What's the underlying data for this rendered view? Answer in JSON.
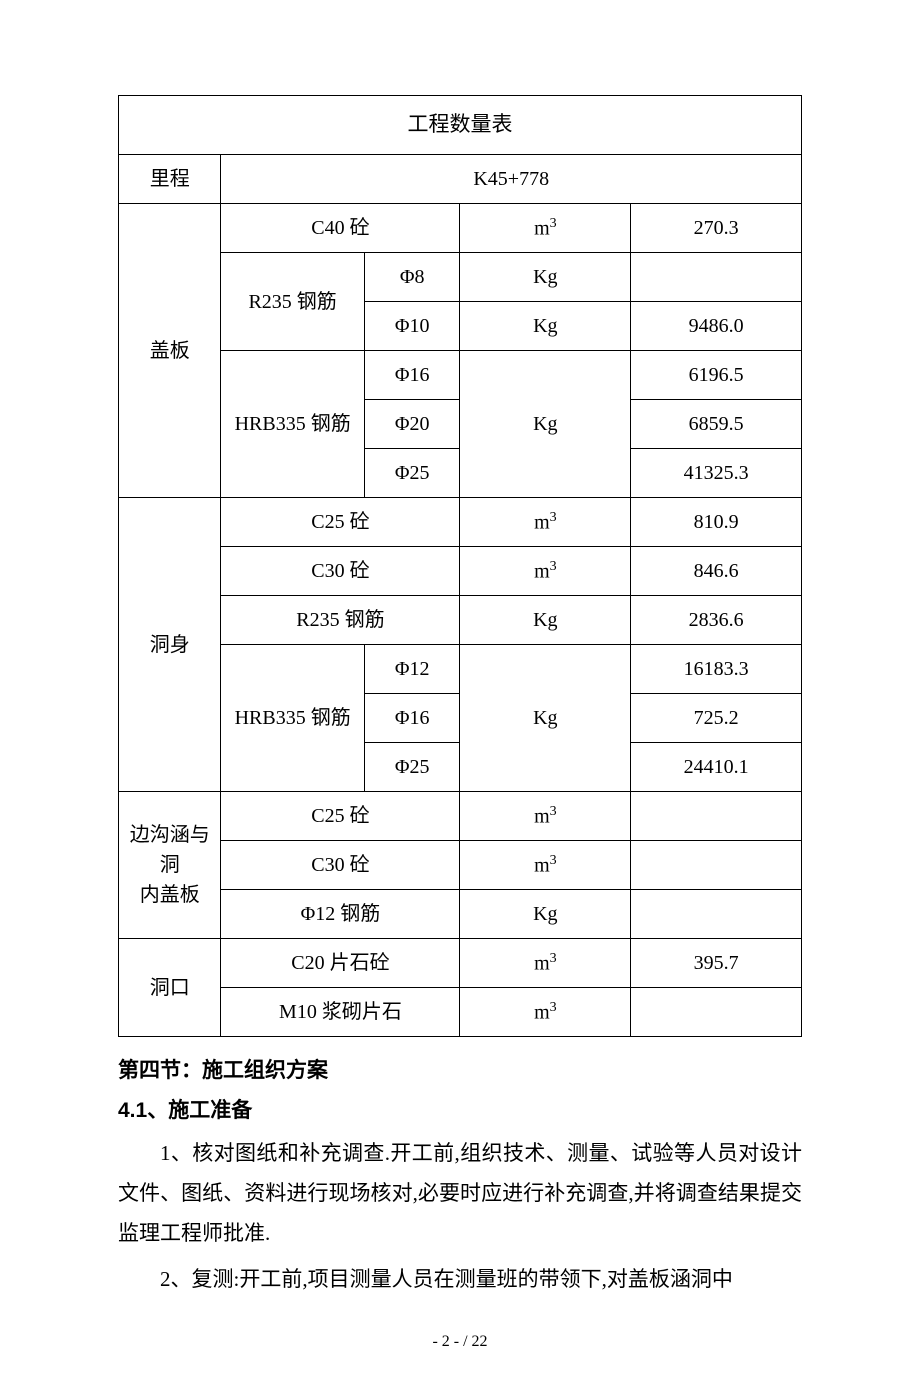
{
  "table": {
    "title": "工程数量表",
    "header_label": "里程",
    "header_value": "K45+778",
    "groups": [
      {
        "name": "盖板",
        "rows": [
          {
            "mat": "C40 砼",
            "spec": "",
            "unit_html": "m<span class='sup'>3</span>",
            "val": "270.3",
            "mat_span_a": 2,
            "mat_span_b": 1
          },
          {
            "mat": "R235 钢筋",
            "spec": "Φ8",
            "unit_html": "Kg",
            "val": "",
            "mat_span_a": 1,
            "mat_span_b": 2
          },
          {
            "mat": "",
            "spec": "Φ10",
            "unit_html": "Kg",
            "val": "9486.0"
          },
          {
            "mat": "HRB335 钢筋",
            "spec": "Φ16",
            "unit_html": "Kg",
            "val": "6196.5",
            "mat_span_a": 1,
            "mat_span_b": 3,
            "unit_rowspan": 3
          },
          {
            "mat": "",
            "spec": "Φ20",
            "unit_html": "",
            "val": "6859.5"
          },
          {
            "mat": "",
            "spec": "Φ25",
            "unit_html": "",
            "val": "41325.3"
          }
        ]
      },
      {
        "name": "洞身",
        "rows": [
          {
            "mat": "C25 砼",
            "spec": "",
            "unit_html": "m<span class='sup'>3</span>",
            "val": "810.9",
            "mat_span_a": 2,
            "mat_span_b": 1
          },
          {
            "mat": "C30 砼",
            "spec": "",
            "unit_html": "m<span class='sup'>3</span>",
            "val": "846.6",
            "mat_span_a": 2,
            "mat_span_b": 1
          },
          {
            "mat": "R235 钢筋",
            "spec": "",
            "unit_html": "Kg",
            "val": "2836.6",
            "mat_span_a": 2,
            "mat_span_b": 1
          },
          {
            "mat": "HRB335 钢筋",
            "spec": "Φ12",
            "unit_html": "Kg",
            "val": "16183.3",
            "mat_span_a": 1,
            "mat_span_b": 3,
            "unit_rowspan": 3
          },
          {
            "mat": "",
            "spec": "Φ16",
            "unit_html": "",
            "val": "725.2"
          },
          {
            "mat": "",
            "spec": "Φ25",
            "unit_html": "",
            "val": "24410.1"
          }
        ]
      },
      {
        "name": "边沟涵与洞内盖板",
        "name_html": "边沟涵与洞<br>内盖板",
        "rows": [
          {
            "mat": "C25 砼",
            "spec": "",
            "unit_html": "m<span class='sup'>3</span>",
            "val": "",
            "mat_span_a": 2,
            "mat_span_b": 1
          },
          {
            "mat": "C30 砼",
            "spec": "",
            "unit_html": "m<span class='sup'>3</span>",
            "val": "",
            "mat_span_a": 2,
            "mat_span_b": 1
          },
          {
            "mat": "Φ12 钢筋",
            "spec": "",
            "unit_html": "Kg",
            "val": "",
            "mat_span_a": 2,
            "mat_span_b": 1
          }
        ]
      },
      {
        "name": "洞口",
        "rows": [
          {
            "mat": "C20 片石砼",
            "spec": "",
            "unit_html": "m<span class='sup'>3</span>",
            "val": "395.7",
            "mat_span_a": 2,
            "mat_span_b": 1
          },
          {
            "mat": "M10 浆砌片石",
            "spec": "",
            "unit_html": "m<span class='sup'>3</span>",
            "val": "",
            "mat_span_a": 2,
            "mat_span_b": 1
          }
        ]
      }
    ],
    "col_widths_pct": [
      15,
      21,
      14,
      25,
      25
    ]
  },
  "text": {
    "section_heading": "第四节：施工组织方案",
    "sub_heading": "4.1、施工准备",
    "para1": "1、核对图纸和补充调查.开工前,组织技术、测量、试验等人员对设计文件、图纸、资料进行现场核对,必要时应进行补充调查,并将调查结果提交监理工程师批准.",
    "para2": "2、复测:开工前,项目测量人员在测量班的带领下,对盖板涵洞中"
  },
  "footer": "- 2 -  / 22"
}
